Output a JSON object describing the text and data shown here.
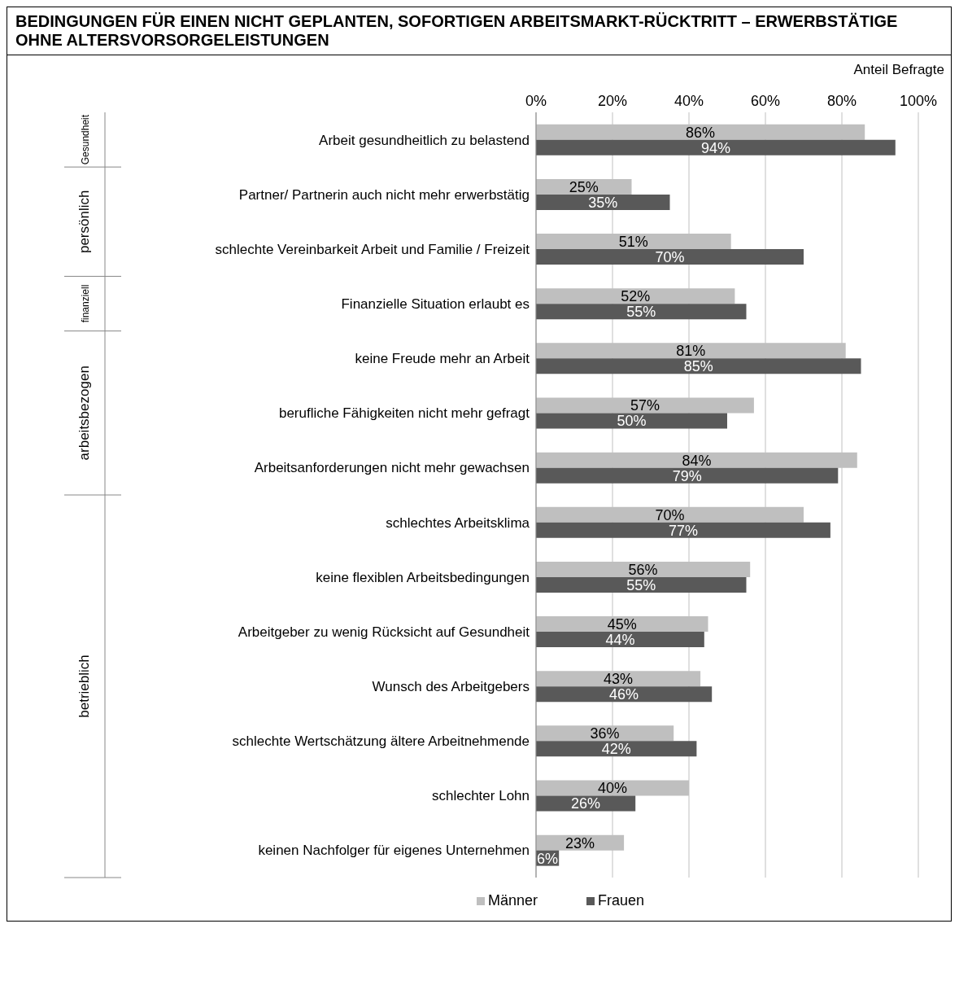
{
  "chart_data": {
    "type": "bar",
    "orientation": "horizontal",
    "title": "BEDINGUNGEN FÜR EINEN NICHT GEPLANTEN, SOFORTIGEN ARBEITSMARKT-RÜCKTRITT – ERWERBSTÄTIGE OHNE ALTERSVORSORGELEISTUNGEN",
    "xlabel": "Anteil Befragte",
    "categories": [
      "Arbeit gesundheitlich zu belastend",
      "Partner/ Partnerin auch nicht mehr erwerbstätig",
      "schlechte Vereinbarkeit Arbeit und Familie / Freizeit",
      "Finanzielle Situation erlaubt es",
      "keine Freude mehr an Arbeit",
      "berufliche Fähigkeiten nicht mehr gefragt",
      "Arbeitsanforderungen nicht mehr gewachsen",
      "schlechtes Arbeitsklima",
      "keine flexiblen Arbeitsbedingungen",
      "Arbeitgeber zu wenig Rücksicht auf Gesundheit",
      "Wunsch des Arbeitgebers",
      "schlechte Wertschätzung ältere Arbeitnehmende",
      "schlechter Lohn",
      "keinen Nachfolger für eigenes Unternehmen"
    ],
    "series": [
      {
        "name": "Männer",
        "color": "#bfbfbf",
        "values": [
          86,
          25,
          51,
          52,
          81,
          57,
          84,
          70,
          56,
          45,
          43,
          36,
          40,
          23
        ],
        "value_labels": [
          "86%",
          "25%",
          "51%",
          "52%",
          "81%",
          "57%",
          "84%",
          "70%",
          "56%",
          "45%",
          "43%",
          "36%",
          "40%",
          "23%"
        ]
      },
      {
        "name": "Frauen",
        "color": "#595959",
        "values": [
          94,
          35,
          70,
          55,
          85,
          50,
          79,
          77,
          55,
          44,
          46,
          42,
          26,
          6
        ],
        "value_labels": [
          "94%",
          "35%",
          "70%",
          "55%",
          "85%",
          "50%",
          "79%",
          "77%",
          "55%",
          "44%",
          "46%",
          "42%",
          "26%",
          "6%"
        ]
      }
    ],
    "annotations": [
      "Gesundheit",
      "persönlich",
      "finanziell",
      "arbeitsbezogen",
      "betrieblich"
    ],
    "xlim": [
      0,
      100
    ],
    "xticks": [
      {
        "value": 0,
        "label": "0%"
      },
      {
        "value": 20,
        "label": "20%"
      },
      {
        "value": 40,
        "label": "40%"
      },
      {
        "value": 60,
        "label": "60%"
      },
      {
        "value": 80,
        "label": "80%"
      },
      {
        "value": 100,
        "label": "100%"
      }
    ],
    "grid": "x",
    "legend": "bottom"
  }
}
